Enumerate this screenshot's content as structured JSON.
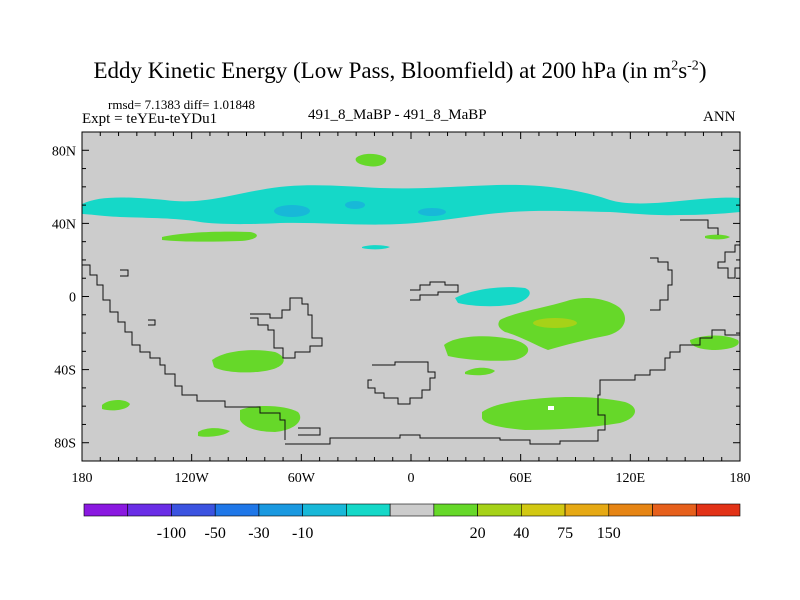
{
  "chart_data": {
    "type": "heatmap",
    "title_main": "Eddy Kinetic Energy (Low Pass, Bloomfield) at 200 hPa (in m",
    "title_sup1": "2",
    "title_mid": "s",
    "title_sup2": "-2",
    "title_end": ")",
    "stats": "rmsd= 7.1383 diff= 1.01848",
    "experiment": "Expt = teYEu-teYDu1",
    "case": "491_8_MaBP - 491_8_MaBP",
    "season": "ANN",
    "x_axis": {
      "range": [
        -180,
        180
      ],
      "ticks": [
        -180,
        -120,
        -60,
        0,
        60,
        120,
        180
      ],
      "tick_labels": [
        "180",
        "120W",
        "60W",
        "0",
        "60E",
        "120E",
        "180"
      ]
    },
    "y_axis": {
      "range": [
        -90,
        90
      ],
      "ticks": [
        80,
        40,
        0,
        -40,
        -80
      ],
      "tick_labels": [
        "80N",
        "40N",
        "0",
        "40S",
        "80S"
      ]
    },
    "colorbar": {
      "colors": [
        "#8a19e0",
        "#6a2ee6",
        "#3b53e0",
        "#1f77e8",
        "#1a99e0",
        "#18b8d8",
        "#15d8c8",
        "#cccccc",
        "#66d829",
        "#a6d218",
        "#d2c812",
        "#e6a914",
        "#e68514",
        "#e6601c",
        "#e23217"
      ],
      "labels": [
        "-100",
        "-50",
        "-30",
        "-10",
        "20",
        "40",
        "75",
        "150"
      ]
    }
  }
}
